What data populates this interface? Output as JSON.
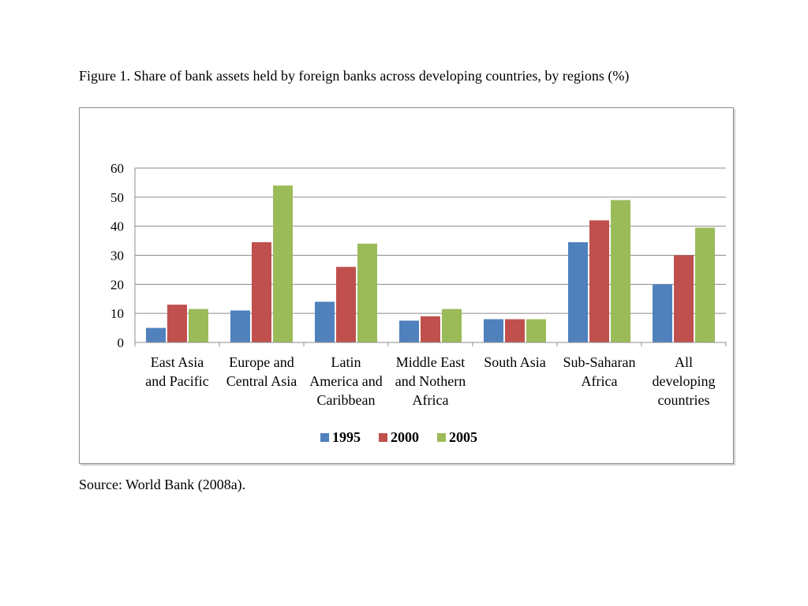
{
  "figure": {
    "title": "Figure 1. Share of bank assets held by foreign banks across developing countries, by regions (%)",
    "source": "Source: World Bank (2008a)."
  },
  "chart_data": {
    "type": "bar",
    "title": "",
    "xlabel": "",
    "ylabel": "",
    "ylim": [
      0,
      60
    ],
    "yticks": [
      "0",
      "10",
      "20",
      "30",
      "40",
      "50",
      "60"
    ],
    "grid": true,
    "legend_position": "bottom",
    "categories": [
      [
        "East Asia",
        "and Pacific"
      ],
      [
        "Europe and",
        "Central Asia"
      ],
      [
        "Latin",
        "America and",
        "Caribbean"
      ],
      [
        "Middle East",
        "and Nothern",
        "Africa"
      ],
      [
        "South Asia"
      ],
      [
        "Sub-Saharan",
        "Africa"
      ],
      [
        "All",
        "developing",
        "countries"
      ]
    ],
    "series": [
      {
        "name": "1995",
        "color": "#4f81bd",
        "values": [
          5,
          11,
          14,
          7.5,
          8,
          34.5,
          20
        ]
      },
      {
        "name": "2000",
        "color": "#c0504d",
        "values": [
          13,
          34.5,
          26,
          9,
          8,
          42,
          30
        ]
      },
      {
        "name": "2005",
        "color": "#9bbb59",
        "values": [
          11.5,
          54,
          34,
          11.5,
          8,
          49,
          39.5
        ]
      }
    ]
  }
}
